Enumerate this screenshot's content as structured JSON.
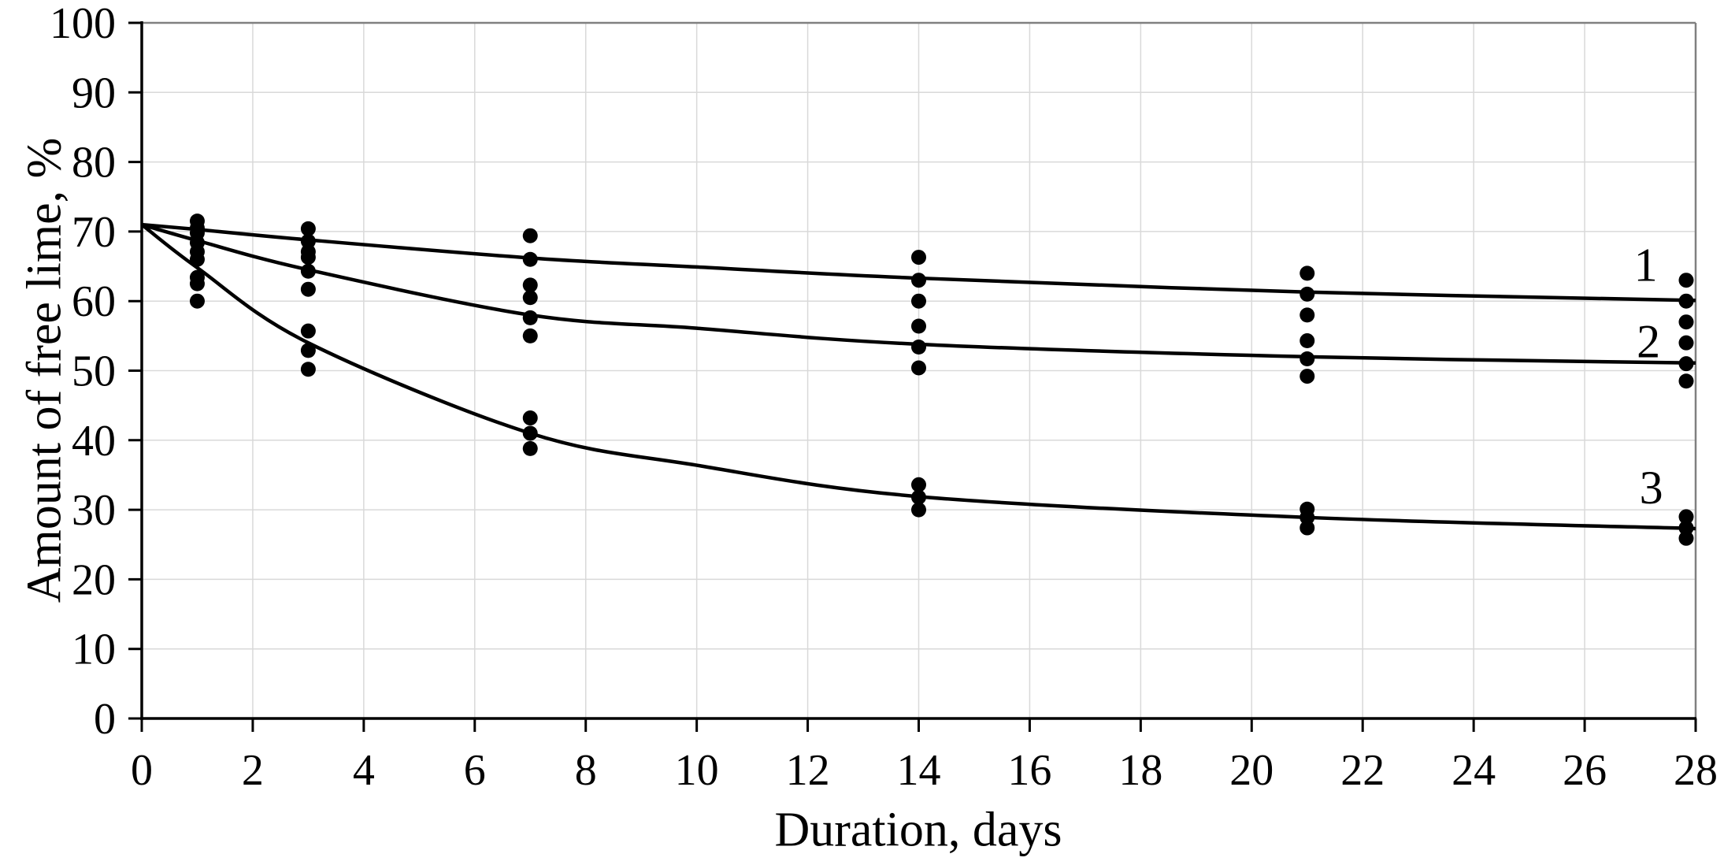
{
  "chart_data": {
    "type": "scatter",
    "title": "",
    "xlabel": "Duration, days",
    "ylabel": "Amount of free lime, %",
    "xlim": [
      0,
      28
    ],
    "ylim": [
      0,
      100
    ],
    "x_ticks": [
      0,
      2,
      4,
      6,
      8,
      10,
      12,
      14,
      16,
      18,
      20,
      22,
      24,
      26,
      28
    ],
    "y_ticks": [
      0,
      10,
      20,
      30,
      40,
      50,
      60,
      70,
      80,
      90,
      100
    ],
    "grid": true,
    "legend_position": "labels-at-line-ends",
    "series": [
      {
        "name": "1",
        "label_anchor": {
          "day": 27.1,
          "value": 65.2
        },
        "curve": [
          [
            0,
            71
          ],
          [
            1,
            70.3
          ],
          [
            3,
            68.8
          ],
          [
            7,
            66.2
          ],
          [
            10,
            64.9
          ],
          [
            14,
            63.3
          ],
          [
            21,
            61.3
          ],
          [
            28,
            60.1
          ]
        ],
        "points": [
          [
            1,
            71.5
          ],
          [
            1,
            70.5
          ],
          [
            1,
            69.8
          ],
          [
            3,
            70.4
          ],
          [
            3,
            68.6
          ],
          [
            3,
            67.1
          ],
          [
            7,
            69.4
          ],
          [
            7,
            66.0
          ],
          [
            7,
            62.3
          ],
          [
            14,
            66.3
          ],
          [
            14,
            63.0
          ],
          [
            14,
            60.0
          ],
          [
            21,
            64.0
          ],
          [
            21,
            61.0
          ],
          [
            21,
            58.0
          ],
          [
            28,
            63.0
          ],
          [
            28,
            60.0
          ],
          [
            28,
            57.0
          ]
        ]
      },
      {
        "name": "2",
        "label_anchor": {
          "day": 27.15,
          "value": 54.2
        },
        "curve": [
          [
            0,
            71
          ],
          [
            1,
            68.7
          ],
          [
            3,
            64.5
          ],
          [
            7,
            58.0
          ],
          [
            10,
            56.1
          ],
          [
            14,
            53.8
          ],
          [
            21,
            52.0
          ],
          [
            28,
            51.1
          ]
        ],
        "points": [
          [
            1,
            68.4
          ],
          [
            1,
            67.1
          ],
          [
            1,
            66.0
          ],
          [
            3,
            66.3
          ],
          [
            3,
            64.3
          ],
          [
            3,
            61.7
          ],
          [
            7,
            60.5
          ],
          [
            7,
            57.6
          ],
          [
            7,
            55.0
          ],
          [
            14,
            56.4
          ],
          [
            14,
            53.4
          ],
          [
            14,
            50.4
          ],
          [
            21,
            54.3
          ],
          [
            21,
            51.7
          ],
          [
            21,
            49.2
          ],
          [
            28,
            54.0
          ],
          [
            28,
            51.0
          ],
          [
            28,
            48.5
          ]
        ]
      },
      {
        "name": "3",
        "label_anchor": {
          "day": 27.2,
          "value": 33.2
        },
        "curve": [
          [
            0,
            71
          ],
          [
            1,
            64.8
          ],
          [
            3,
            54.0
          ],
          [
            7,
            41.0
          ],
          [
            10,
            36.4
          ],
          [
            14,
            31.9
          ],
          [
            21,
            28.9
          ],
          [
            28,
            27.3
          ]
        ],
        "points": [
          [
            1,
            63.4
          ],
          [
            1,
            62.5
          ],
          [
            1,
            60.0
          ],
          [
            3,
            55.7
          ],
          [
            3,
            52.9
          ],
          [
            3,
            50.2
          ],
          [
            7,
            43.2
          ],
          [
            7,
            41.0
          ],
          [
            7,
            38.8
          ],
          [
            14,
            33.6
          ],
          [
            14,
            31.8
          ],
          [
            14,
            30.0
          ],
          [
            21,
            30.1
          ],
          [
            21,
            28.9
          ],
          [
            21,
            27.4
          ],
          [
            28,
            29.0
          ],
          [
            28,
            27.4
          ],
          [
            28,
            25.9
          ]
        ]
      }
    ],
    "colors": {
      "background": "#ffffff",
      "gridline": "#d9d9d9",
      "plot_border": "#808080",
      "axis": "#000000",
      "curve": "#000000",
      "marker": "#000000",
      "text": "#000000"
    }
  }
}
